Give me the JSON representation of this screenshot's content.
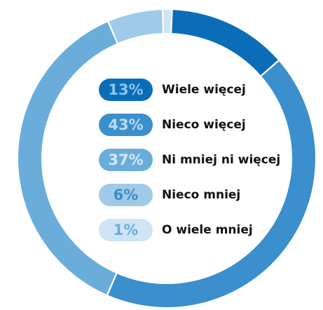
{
  "chart_data": {
    "type": "pie",
    "categories": [
      "Wiele więcej",
      "Nieco więcej",
      "Ni mniej ni więcej",
      "Nieco mniej",
      "O wiele mniej"
    ],
    "values": [
      13,
      43,
      37,
      6,
      1
    ],
    "value_labels": [
      "13%",
      "43%",
      "37%",
      "6%",
      "1%"
    ],
    "colors": [
      "#0b6db8",
      "#3a8fcc",
      "#6aaddb",
      "#9fcbe9",
      "#cfe4f4"
    ],
    "label_colors": [
      "#8cc5ef",
      "#b9dcf5",
      "#d4e9f8",
      "#3a8fcc",
      "#6aaddb"
    ]
  }
}
